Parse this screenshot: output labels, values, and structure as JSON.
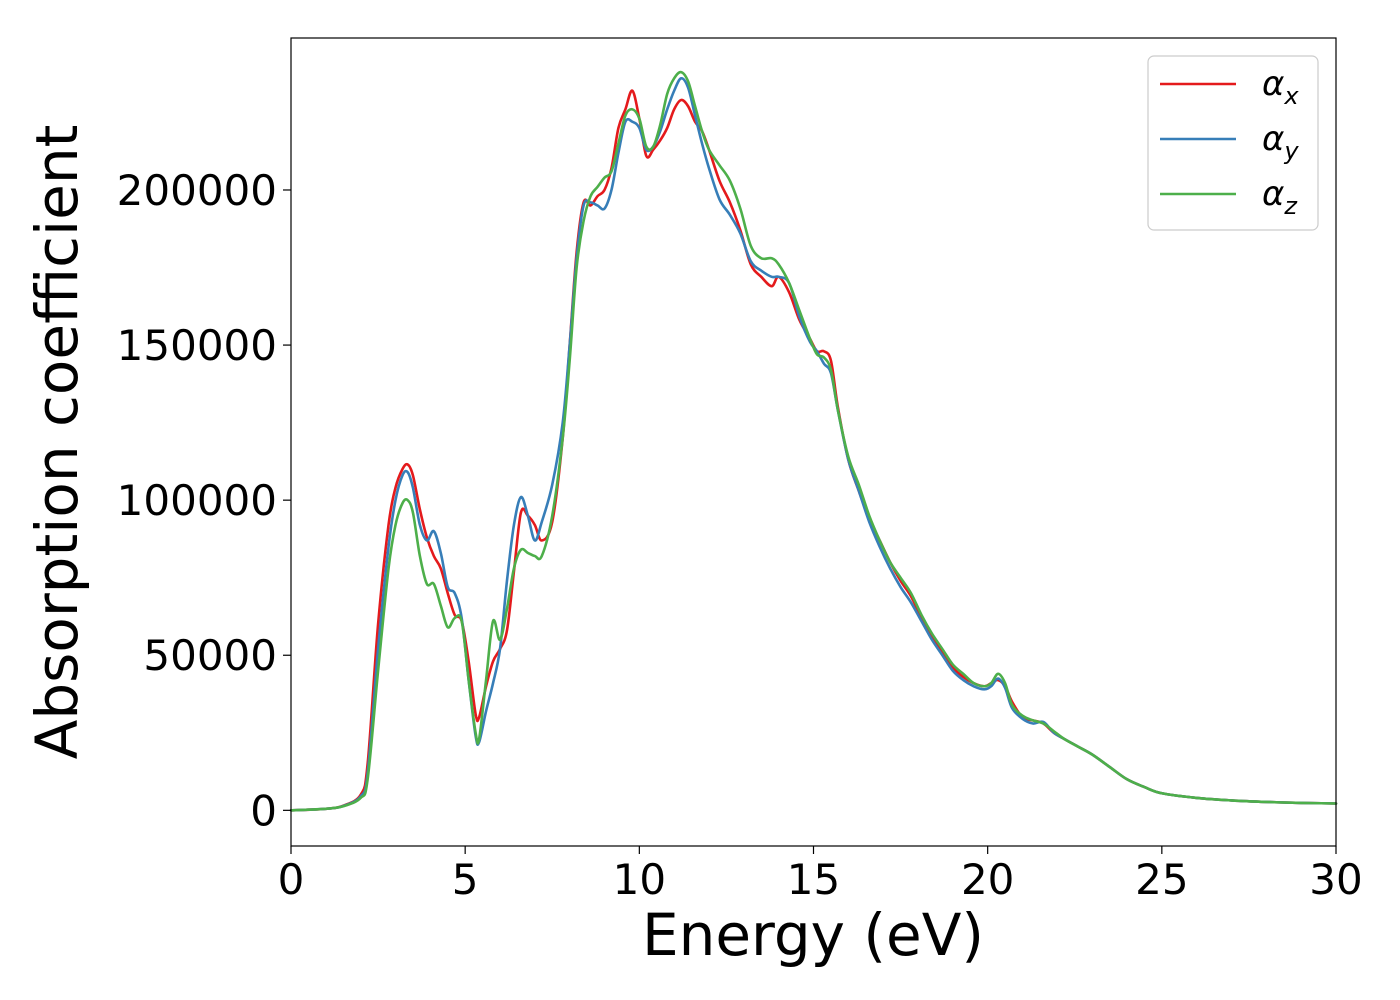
{
  "chart_data": {
    "type": "line",
    "xlabel": "Energy (eV)",
    "ylabel": "Absorption coefficient",
    "xlim": [
      0,
      30
    ],
    "ylim": [
      -11500,
      249000
    ],
    "xticks": [
      0,
      5,
      10,
      15,
      20,
      25,
      30
    ],
    "yticks": [
      0,
      50000,
      100000,
      150000,
      200000
    ],
    "grid": false,
    "legend_position": "top-right",
    "series": [
      {
        "name": "α_x",
        "label_main": "α",
        "label_sub": "x",
        "color": "#e41a1c",
        "x": [
          0,
          1,
          1.5,
          2,
          2.2,
          2.5,
          2.8,
          3.0,
          3.2,
          3.35,
          3.5,
          3.7,
          3.9,
          4.1,
          4.3,
          4.5,
          4.7,
          4.9,
          5.1,
          5.3,
          5.4,
          5.6,
          5.8,
          6.0,
          6.2,
          6.4,
          6.6,
          6.8,
          7.0,
          7.2,
          7.5,
          7.8,
          8.0,
          8.2,
          8.4,
          8.6,
          8.8,
          9.0,
          9.2,
          9.4,
          9.6,
          9.8,
          10.0,
          10.2,
          10.4,
          10.6,
          10.8,
          11.0,
          11.2,
          11.4,
          11.6,
          11.8,
          12.0,
          12.3,
          12.6,
          12.9,
          13.2,
          13.5,
          13.8,
          14.0,
          14.3,
          14.6,
          14.9,
          15.1,
          15.3,
          15.5,
          15.7,
          16.0,
          16.3,
          16.6,
          16.9,
          17.2,
          17.5,
          17.8,
          18.1,
          18.4,
          18.7,
          19.0,
          19.3,
          19.6,
          19.9,
          20.1,
          20.3,
          20.5,
          20.7,
          21.0,
          21.3,
          21.6,
          21.9,
          22.2,
          22.6,
          23.0,
          23.5,
          24.0,
          24.5,
          25.0,
          26.0,
          27.0,
          28.0,
          29.0,
          30.0
        ],
        "y": [
          0,
          500,
          1500,
          5000,
          15000,
          60000,
          92000,
          104000,
          110000,
          111500,
          108000,
          97000,
          88000,
          82000,
          78000,
          70000,
          63000,
          61000,
          48000,
          31000,
          30000,
          40000,
          48000,
          52000,
          58000,
          77000,
          96000,
          95000,
          92000,
          87000,
          93000,
          120000,
          150000,
          180000,
          196000,
          195000,
          198000,
          200000,
          207000,
          220000,
          226000,
          232000,
          223000,
          211000,
          213000,
          216000,
          220000,
          226000,
          229000,
          227000,
          222000,
          219000,
          213000,
          203000,
          196000,
          187000,
          176000,
          172000,
          169000,
          172000,
          167000,
          158000,
          152000,
          148000,
          148000,
          145000,
          130000,
          113000,
          103000,
          94000,
          87000,
          80000,
          74000,
          69000,
          62000,
          56000,
          51000,
          46000,
          43000,
          41000,
          40000,
          41000,
          42000,
          40000,
          35000,
          30000,
          29000,
          28000,
          25000,
          23000,
          20500,
          18000,
          14000,
          10000,
          7500,
          5500,
          4000,
          3200,
          2700,
          2400,
          2200
        ]
      },
      {
        "name": "α_y",
        "label_main": "α",
        "label_sub": "y",
        "color": "#377eb8",
        "x": [
          0,
          1,
          1.5,
          2,
          2.2,
          2.5,
          2.8,
          3.0,
          3.2,
          3.35,
          3.5,
          3.7,
          3.9,
          4.1,
          4.3,
          4.5,
          4.7,
          4.9,
          5.1,
          5.3,
          5.4,
          5.6,
          5.8,
          6.0,
          6.2,
          6.4,
          6.6,
          6.8,
          7.0,
          7.2,
          7.5,
          7.8,
          8.0,
          8.2,
          8.4,
          8.6,
          8.8,
          9.0,
          9.2,
          9.4,
          9.6,
          9.8,
          10.0,
          10.2,
          10.4,
          10.6,
          10.8,
          11.0,
          11.2,
          11.4,
          11.6,
          11.8,
          12.0,
          12.3,
          12.6,
          12.9,
          13.2,
          13.5,
          13.8,
          14.0,
          14.3,
          14.6,
          14.9,
          15.1,
          15.3,
          15.5,
          15.7,
          16.0,
          16.3,
          16.6,
          16.9,
          17.2,
          17.5,
          17.8,
          18.1,
          18.4,
          18.7,
          19.0,
          19.3,
          19.6,
          19.9,
          20.1,
          20.3,
          20.5,
          20.7,
          21.0,
          21.3,
          21.6,
          21.9,
          22.2,
          22.6,
          23.0,
          23.5,
          24.0,
          24.5,
          25.0,
          26.0,
          27.0,
          28.0,
          29.0,
          30.0
        ],
        "y": [
          0,
          500,
          1400,
          4500,
          12000,
          52000,
          85000,
          100000,
          108000,
          109000,
          104000,
          92000,
          87000,
          90000,
          83000,
          72000,
          70000,
          62000,
          42000,
          24000,
          22000,
          32000,
          41000,
          52000,
          74000,
          92000,
          101000,
          95000,
          87000,
          93000,
          105000,
          125000,
          150000,
          178000,
          195000,
          196000,
          195000,
          194000,
          200000,
          212000,
          222000,
          222000,
          220000,
          213000,
          214000,
          219000,
          226000,
          232000,
          236000,
          233000,
          224000,
          215000,
          207000,
          197000,
          192000,
          186000,
          177000,
          174000,
          172000,
          172000,
          170000,
          159000,
          151000,
          148000,
          144000,
          141000,
          129000,
          113000,
          103000,
          93000,
          85000,
          78000,
          72000,
          67000,
          61000,
          55000,
          50000,
          45000,
          42000,
          40000,
          39000,
          40000,
          42500,
          39500,
          33000,
          29500,
          28000,
          28500,
          25000,
          23000,
          20500,
          18000,
          14000,
          10000,
          7500,
          5500,
          4000,
          3200,
          2700,
          2400,
          2200
        ]
      },
      {
        "name": "α_z",
        "label_main": "α",
        "label_sub": "z",
        "color": "#4daf4a",
        "x": [
          0,
          1,
          1.5,
          2,
          2.2,
          2.5,
          2.8,
          3.0,
          3.2,
          3.35,
          3.5,
          3.7,
          3.9,
          4.1,
          4.3,
          4.5,
          4.7,
          4.9,
          5.1,
          5.3,
          5.4,
          5.6,
          5.8,
          6.0,
          6.2,
          6.4,
          6.6,
          6.8,
          7.0,
          7.2,
          7.5,
          7.8,
          8.0,
          8.2,
          8.4,
          8.6,
          8.8,
          9.0,
          9.2,
          9.4,
          9.6,
          9.8,
          10.0,
          10.2,
          10.4,
          10.6,
          10.8,
          11.0,
          11.2,
          11.4,
          11.6,
          11.8,
          12.0,
          12.3,
          12.6,
          12.9,
          13.2,
          13.5,
          13.8,
          14.0,
          14.3,
          14.6,
          14.9,
          15.1,
          15.3,
          15.5,
          15.7,
          16.0,
          16.3,
          16.6,
          16.9,
          17.2,
          17.5,
          17.8,
          18.1,
          18.4,
          18.7,
          19.0,
          19.3,
          19.6,
          19.9,
          20.1,
          20.3,
          20.5,
          20.7,
          21.0,
          21.3,
          21.6,
          21.9,
          22.2,
          22.6,
          23.0,
          23.5,
          24.0,
          24.5,
          25.0,
          26.0,
          27.0,
          28.0,
          29.0,
          30.0
        ],
        "y": [
          0,
          500,
          1300,
          4000,
          10000,
          45000,
          78000,
          92000,
          99000,
          100000,
          96000,
          82000,
          73000,
          73000,
          66000,
          59000,
          62000,
          61000,
          42000,
          25000,
          23000,
          42000,
          61000,
          55000,
          65000,
          78000,
          84000,
          83000,
          82000,
          82000,
          95000,
          120000,
          145000,
          175000,
          190000,
          198000,
          201000,
          204000,
          206000,
          215000,
          224000,
          226000,
          223000,
          214000,
          214000,
          221000,
          231000,
          236000,
          238000,
          235000,
          227000,
          219000,
          213000,
          208000,
          203000,
          194000,
          182000,
          178000,
          178000,
          176000,
          170000,
          161000,
          152000,
          147000,
          146000,
          142000,
          129000,
          114000,
          105000,
          95000,
          87000,
          80000,
          75000,
          70000,
          63000,
          57000,
          52000,
          47000,
          44000,
          41000,
          40000,
          41000,
          44000,
          41000,
          34000,
          30500,
          29000,
          28000,
          25500,
          23000,
          20500,
          18000,
          14000,
          10000,
          7500,
          5500,
          4000,
          3200,
          2700,
          2400,
          2200
        ]
      }
    ]
  }
}
